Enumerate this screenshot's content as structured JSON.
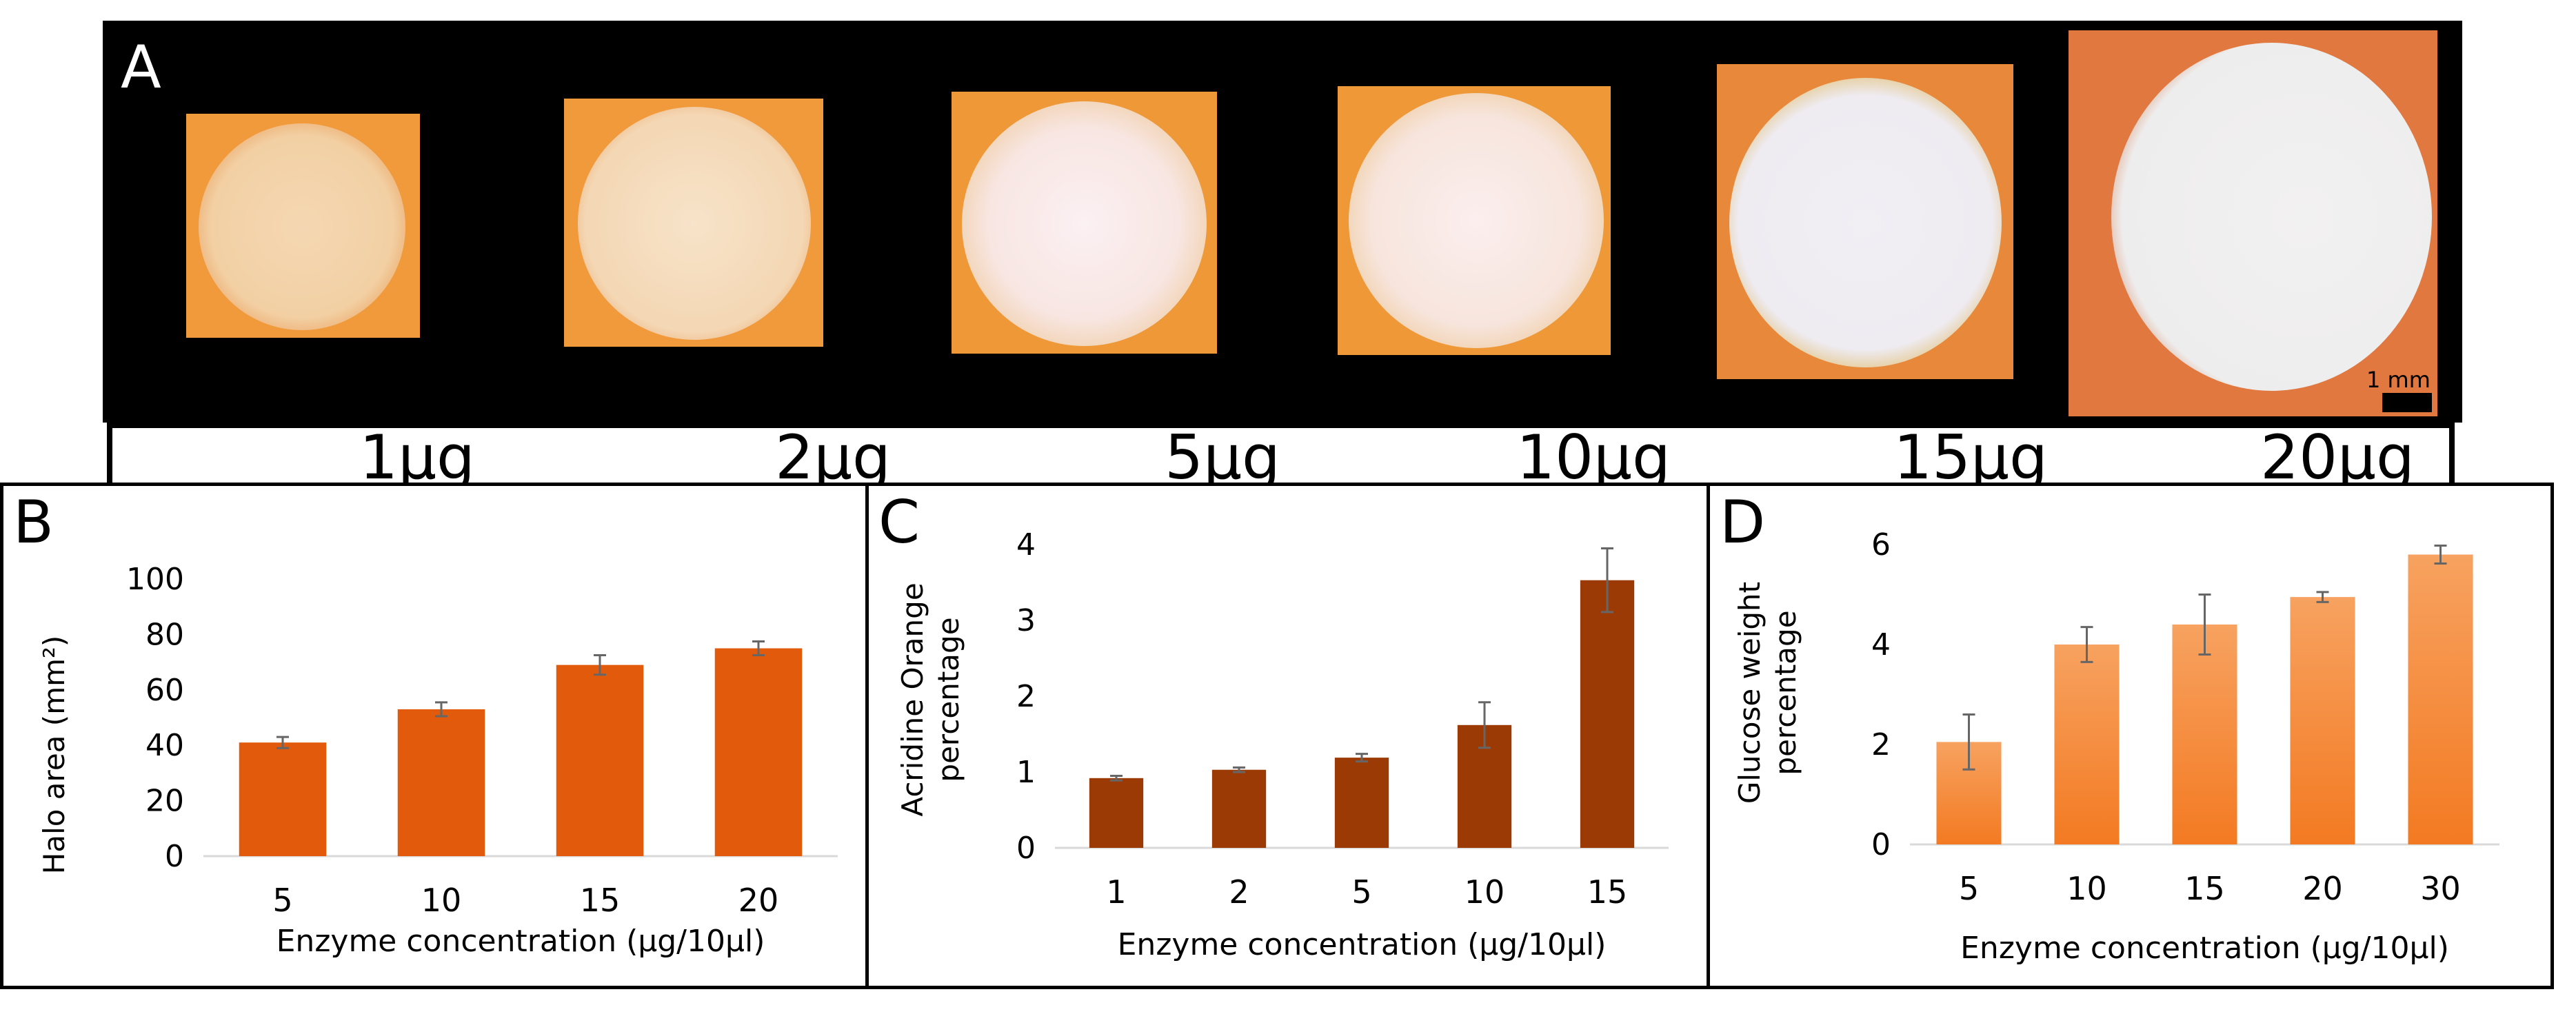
{
  "panel_a": {
    "letter": "A",
    "scale_bar_label": "1 mm",
    "concentrations": [
      "1µg",
      "2µg",
      "5µg",
      "10µg",
      "15µg",
      "20µg"
    ]
  },
  "colors": {
    "panel_b_bar": "#e25a0b",
    "panel_c_bar": "#9c3a06",
    "panel_d_bar_top": "#f7a260",
    "panel_d_bar_bottom": "#f37a22",
    "error_bar": "#666666",
    "gridline": "#d9d9d9"
  },
  "chart_data": [
    {
      "panel": "B",
      "type": "bar",
      "categories": [
        "5",
        "10",
        "15",
        "20"
      ],
      "values": [
        41,
        53,
        69,
        75
      ],
      "errors": [
        2,
        2.5,
        3.5,
        2.5
      ],
      "title": "",
      "xlabel": "Enzyme concentration (µg/10µl)",
      "ylabel": "Halo area (mm²)",
      "ylim": [
        0,
        100
      ],
      "yticks": [
        "0",
        "20",
        "40",
        "60",
        "80",
        "100"
      ],
      "grid": false
    },
    {
      "panel": "C",
      "type": "bar",
      "categories": [
        "1",
        "2",
        "5",
        "10",
        "15"
      ],
      "values": [
        0.92,
        1.03,
        1.19,
        1.62,
        3.53
      ],
      "errors": [
        0.03,
        0.03,
        0.05,
        0.3,
        0.42
      ],
      "title": "",
      "xlabel": "Enzyme concentration (µg/10µl)",
      "ylabel": [
        "Acridine Orange",
        "percentage"
      ],
      "ylim": [
        0,
        4
      ],
      "yticks": [
        "0",
        "1",
        "2",
        "3",
        "4"
      ],
      "grid": false
    },
    {
      "panel": "D",
      "type": "bar",
      "categories": [
        "5",
        "10",
        "15",
        "20",
        "30"
      ],
      "values": [
        2.05,
        4.0,
        4.4,
        4.95,
        5.8
      ],
      "errors": [
        0.55,
        0.35,
        0.6,
        0.1,
        0.18
      ],
      "title": "",
      "xlabel": "Enzyme concentration (µg/10µl)",
      "ylabel": [
        "Glucose weight",
        "percentage"
      ],
      "ylim": [
        0,
        6
      ],
      "yticks": [
        "0",
        "2",
        "4",
        "6"
      ],
      "grid": false
    }
  ]
}
